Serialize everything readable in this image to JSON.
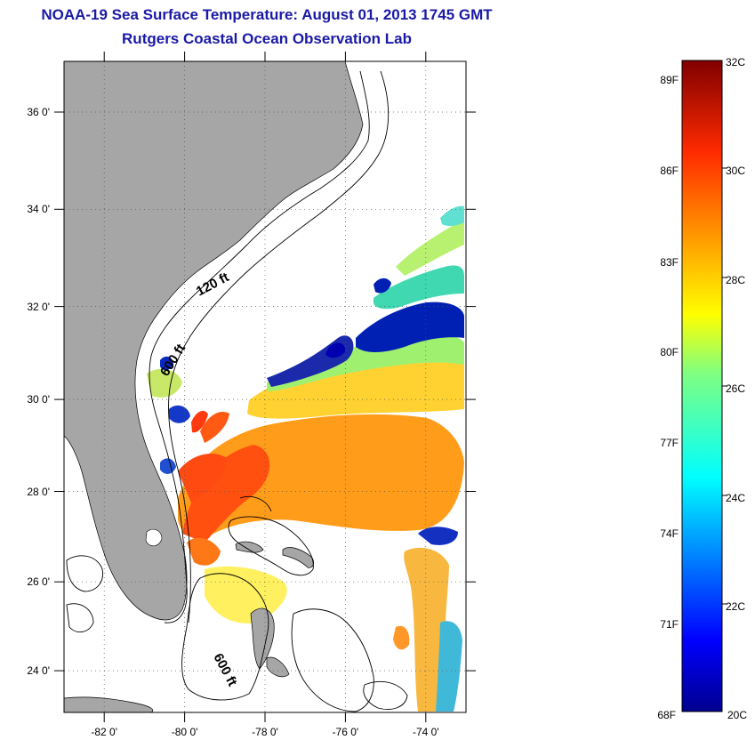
{
  "header": {
    "title": "NOAA-19 Sea Surface Temperature:  August 01, 2013 1745 GMT",
    "subtitle": "Rutgers Coastal Ocean Observation Lab"
  },
  "map": {
    "lon_range": [
      -83,
      -73
    ],
    "lat_range": [
      23,
      37
    ],
    "x_tick_labels": [
      "-82 0'",
      "-80 0'",
      "-78 0'",
      "-76 0'",
      "-74 0'"
    ],
    "y_tick_labels": [
      "36 0'",
      "34 0'",
      "32 0'",
      "30 0'",
      "28 0'",
      "26 0'",
      "24 0'"
    ],
    "grid": "dotted",
    "land_color": "#a6a6a6",
    "contour_labels": [
      "120 ft",
      "600 ft",
      "600 ft"
    ]
  },
  "colorbar": {
    "range_celsius": [
      20,
      32
    ],
    "fahrenheit_labels": [
      "89F",
      "86F",
      "83F",
      "80F",
      "77F",
      "74F",
      "71F",
      "68F"
    ],
    "celsius_labels": [
      "32C",
      "30C",
      "28C",
      "26C",
      "24C",
      "22C",
      "20C"
    ]
  },
  "chart_data": {
    "type": "heatmap",
    "title": "NOAA-19 Sea Surface Temperature:  August 01, 2013 1745 GMT",
    "subtitle": "Rutgers Coastal Ocean Observation Lab",
    "xlim": [
      -83,
      -73
    ],
    "ylim": [
      23,
      37
    ],
    "colorbar_range_c": [
      20,
      32
    ],
    "grid": true
  }
}
